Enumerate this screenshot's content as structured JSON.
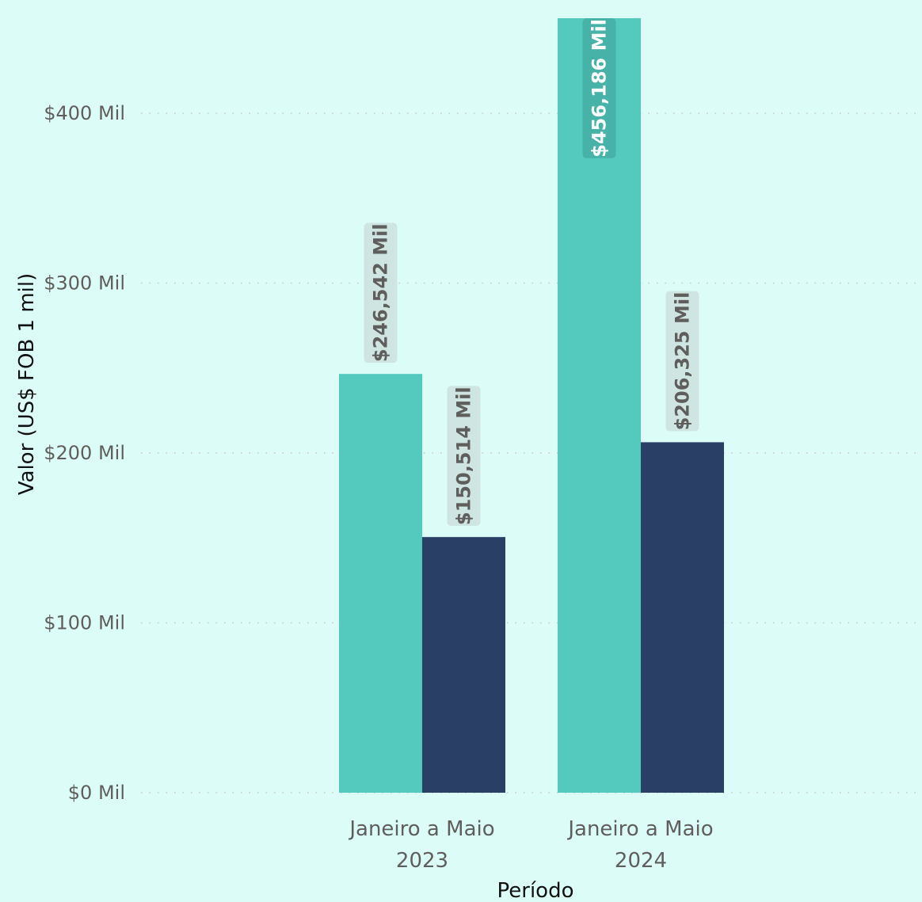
{
  "chart_data": {
    "type": "bar",
    "title": "",
    "xlabel": "Período",
    "ylabel": "Valor (US$ FOB 1 mil)",
    "categories": [
      [
        "Janeiro a Maio",
        "2023"
      ],
      [
        "Janeiro a Maio",
        "2024"
      ]
    ],
    "series": [
      {
        "color": "#54cabe",
        "values": [
          246542,
          456186
        ],
        "labels": [
          "$246,542 Mil",
          "$456,186 Mil"
        ]
      },
      {
        "color": "#293f66",
        "values": [
          150514,
          206325
        ],
        "labels": [
          "$150,514 Mil",
          "$206,325 Mil"
        ]
      }
    ],
    "ylim": [
      0,
      456186
    ],
    "yticks": [
      {
        "value": 0,
        "label": "$0 Mil"
      },
      {
        "value": 100000,
        "label": "$100 Mil"
      },
      {
        "value": 200000,
        "label": "$200 Mil"
      },
      {
        "value": 300000,
        "label": "$300 Mil"
      },
      {
        "value": 400000,
        "label": "$400 Mil"
      }
    ],
    "grid": true,
    "legend": "none"
  },
  "colors": {
    "background": "#dcfdf7",
    "gridline": "#c8c6c4",
    "label_bg_outside": "#cfe5e1",
    "label_text_outside": "#605e5c",
    "label_bg_inside": "#47b2a8",
    "label_text_inside": "#ffffff"
  }
}
